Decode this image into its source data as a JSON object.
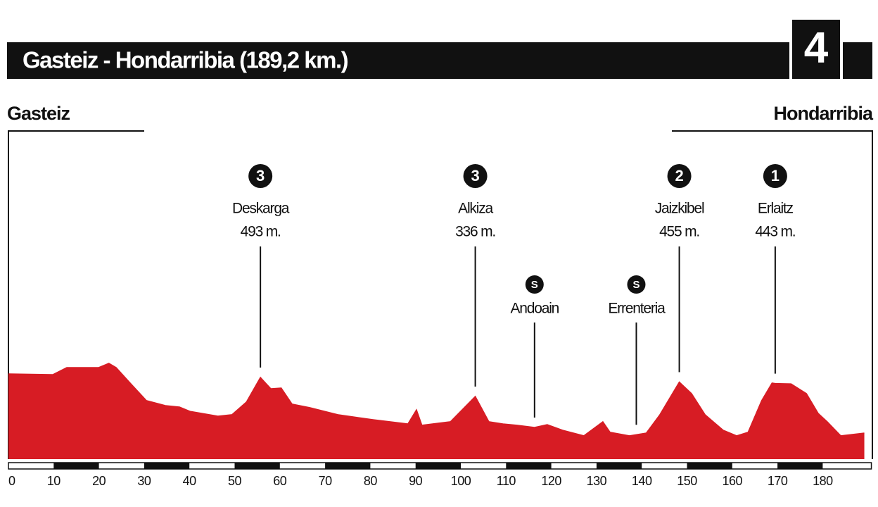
{
  "chart_data": {
    "type": "area",
    "title": "Gasteiz - Hondarribia (189,2 km.)",
    "stage": "4",
    "start": "Gasteiz",
    "finish": "Hondarribia",
    "color": "#d71c24",
    "x": [
      0,
      9.8,
      12.9,
      19.9,
      22.2,
      23.8,
      26.9,
      30.5,
      34.7,
      37.8,
      40.1,
      46.3,
      49.4,
      52.6,
      55.7,
      58,
      60.3,
      62.7,
      66.6,
      72.8,
      80.6,
      88.3,
      90.2,
      91.4,
      97.7,
      103.2,
      106.2,
      109.3,
      112.4,
      116.3,
      119.1,
      122.5,
      127.2,
      131.4,
      133,
      137.3,
      141,
      144,
      148.3,
      151,
      154,
      158,
      161,
      163.5,
      166.5,
      168.8,
      169.5,
      173,
      176.4,
      179,
      181,
      184,
      189.2
    ],
    "values": [
      522,
      516,
      574,
      574,
      609,
      574,
      447,
      302,
      261,
      249,
      214,
      174,
      186,
      290,
      493,
      400,
      406,
      273,
      244,
      186,
      145,
      110,
      226,
      99,
      128,
      336,
      128,
      110,
      99,
      81,
      104,
      58,
      12,
      128,
      41,
      12,
      35,
      186,
      455,
      360,
      186,
      58,
      12,
      41,
      302,
      447,
      443,
      440,
      360,
      197,
      128,
      12,
      35
    ],
    "xlim": [
      0,
      189.2
    ],
    "ylim": [
      -180,
      2500
    ],
    "xticks": [
      0,
      10,
      20,
      30,
      40,
      50,
      60,
      70,
      80,
      90,
      100,
      110,
      120,
      130,
      140,
      150,
      160,
      170,
      180
    ],
    "annotations": [
      {
        "km": 55.7,
        "category": "3",
        "name": "Deskarga",
        "elevation": 493,
        "label": "493 m."
      },
      {
        "km": 103.2,
        "category": "3",
        "name": "Alkiza",
        "elevation": 336,
        "label": "336 m."
      },
      {
        "km": 116.3,
        "category": "S",
        "name": "Andoain"
      },
      {
        "km": 138.8,
        "category": "S",
        "name": "Errenteria"
      },
      {
        "km": 148.3,
        "category": "2",
        "name": "Jaizkibel",
        "elevation": 455,
        "label": "455 m."
      },
      {
        "km": 169.5,
        "category": "1",
        "name": "Erlaitz",
        "elevation": 443,
        "label": "443 m."
      }
    ]
  }
}
